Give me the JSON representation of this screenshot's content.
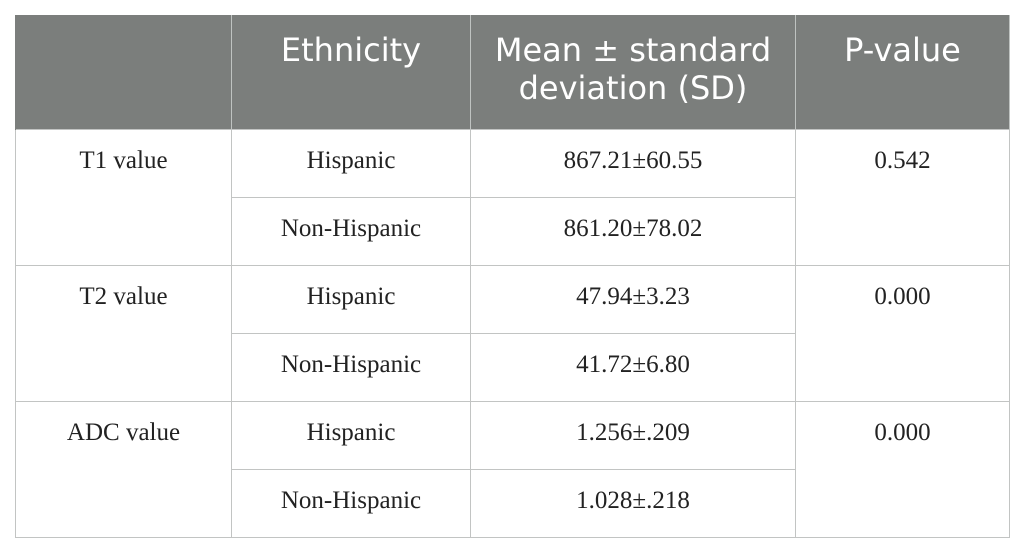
{
  "table": {
    "headers": [
      "",
      "Ethnicity",
      "Mean ± standard deviation (SD)",
      "P-value"
    ],
    "groups": [
      {
        "label": "T1 value",
        "p_value": "0.542",
        "rows": [
          {
            "ethnicity": "Hispanic",
            "mean_sd": "867.21±60.55"
          },
          {
            "ethnicity": "Non-Hispanic",
            "mean_sd": "861.20±78.02"
          }
        ]
      },
      {
        "label": "T2 value",
        "p_value": "0.000",
        "rows": [
          {
            "ethnicity": "Hispanic",
            "mean_sd": "47.94±3.23"
          },
          {
            "ethnicity": "Non-Hispanic",
            "mean_sd": "41.72±6.80"
          }
        ]
      },
      {
        "label": "ADC value",
        "p_value": "0.000",
        "rows": [
          {
            "ethnicity": "Hispanic",
            "mean_sd": "1.256±.209"
          },
          {
            "ethnicity": "Non-Hispanic",
            "mean_sd": "1.028±.218"
          }
        ]
      }
    ]
  },
  "colors": {
    "header_bg": "#7b7e7c",
    "header_text": "#ffffff",
    "border": "#c2c4c3",
    "cell_text": "#222222"
  }
}
